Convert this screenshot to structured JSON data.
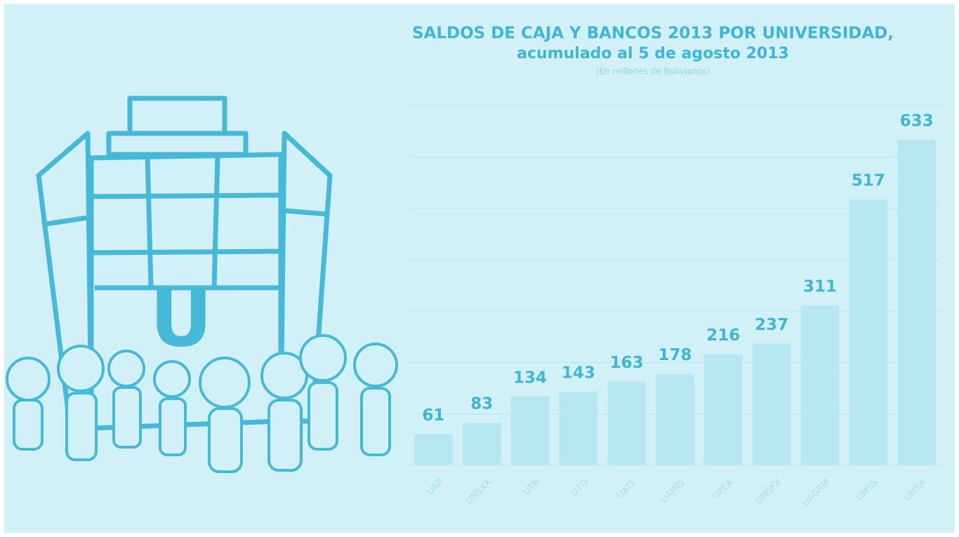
{
  "chart_data": {
    "type": "bar",
    "title": "SALDOS DE CAJA Y BANCOS 2013 POR UNIVERSIDAD,",
    "subtitle": "acumulado al 5 de agosto 2013",
    "note": "(En millones de Bolivianos)",
    "categories": [
      "UAP",
      "UNSXX",
      "UTB",
      "UTO",
      "UATF",
      "UAJMS",
      "UPEA",
      "UMSFX",
      "UAGRM",
      "UMSS",
      "UMSA"
    ],
    "values": [
      61,
      83,
      134,
      143,
      163,
      178,
      216,
      237,
      311,
      517,
      633
    ],
    "color": "#b5e6f1",
    "ylim": [
      0,
      700
    ],
    "yticks": [
      0,
      100,
      200,
      300,
      400,
      500,
      600,
      700
    ],
    "grid": true
  },
  "illustration": {
    "sign": "U"
  }
}
